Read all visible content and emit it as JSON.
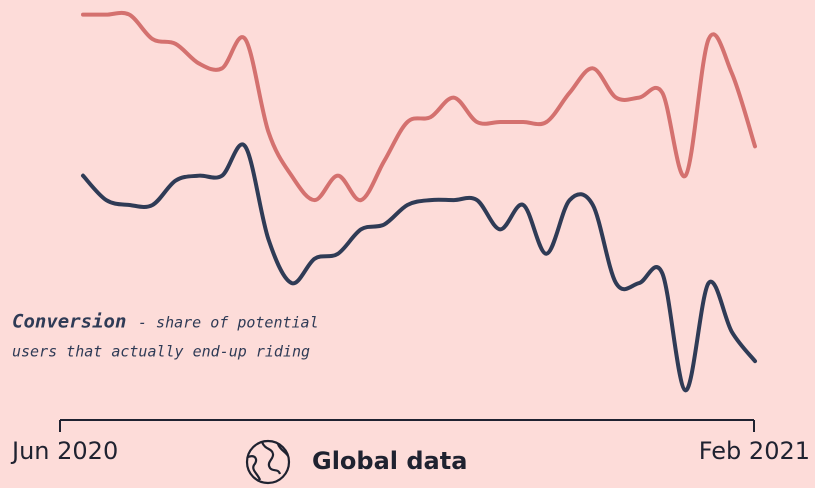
{
  "chart_data": {
    "type": "line",
    "categories": [
      "Jun 2020",
      null,
      null,
      null,
      null,
      null,
      null,
      null,
      null,
      null,
      null,
      null,
      null,
      null,
      null,
      null,
      null,
      null,
      null,
      null,
      null,
      null,
      null,
      null,
      null,
      null,
      null,
      null,
      null,
      "Feb 2021"
    ],
    "series": [
      {
        "color": "#d4716f",
        "values": [
          97,
          97,
          97,
          92,
          91,
          87,
          86,
          92,
          73,
          64,
          59,
          64,
          59,
          67,
          75,
          76,
          80,
          75,
          75,
          75,
          75,
          81,
          86,
          80,
          80,
          81,
          64,
          92,
          85,
          70
        ]
      },
      {
        "color": "#2f3b56",
        "values": [
          64,
          59,
          58,
          58,
          63,
          64,
          64,
          70,
          51,
          42,
          47,
          48,
          53,
          54,
          58,
          59,
          59,
          59,
          53,
          58,
          48,
          59,
          58,
          42,
          42,
          44,
          20,
          42,
          32,
          26
        ]
      }
    ],
    "ylim": [
      0,
      100
    ],
    "annotation": [
      "Conversion",
      "- share of potential",
      "users that actually end-up riding"
    ],
    "footer": "Global data"
  }
}
